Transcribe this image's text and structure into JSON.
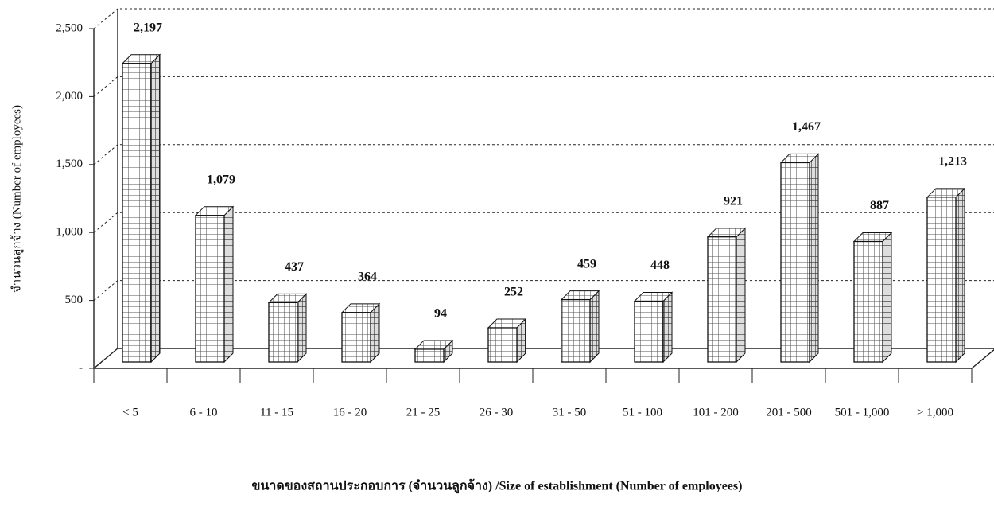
{
  "chart_data": {
    "type": "bar3d",
    "categories": [
      "< 5",
      "6 - 10",
      "11 - 15",
      "16 - 20",
      "21 - 25",
      "26 - 30",
      "31 - 50",
      "51 - 100",
      "101 - 200",
      "201 - 500",
      "501 - 1,000",
      "> 1,000"
    ],
    "values": [
      2197,
      1079,
      437,
      364,
      94,
      252,
      459,
      448,
      921,
      1467,
      887,
      1213
    ],
    "value_labels": [
      "2,197",
      "1,079",
      "437",
      "364",
      "94",
      "252",
      "459",
      "448",
      "921",
      "1,467",
      "887",
      "1,213"
    ],
    "color": "#ffffff",
    "ylim": [
      0,
      2500
    ],
    "yticks": [
      {
        "value": 0,
        "label": "-"
      },
      500,
      {
        "value": 1000,
        "label": "1,000"
      },
      {
        "value": 1500,
        "label": "1,500"
      },
      {
        "value": 2000,
        "label": "2,000"
      },
      {
        "value": 2500,
        "label": "2,500"
      }
    ],
    "grid": true,
    "y_label": "จำนวนลูกจ้าง (Number of employees)",
    "x_label": "ขนาดของสถานประกอบการ (จำนวนลูกจ้าง) /Size of establishment (Number of employees)"
  }
}
